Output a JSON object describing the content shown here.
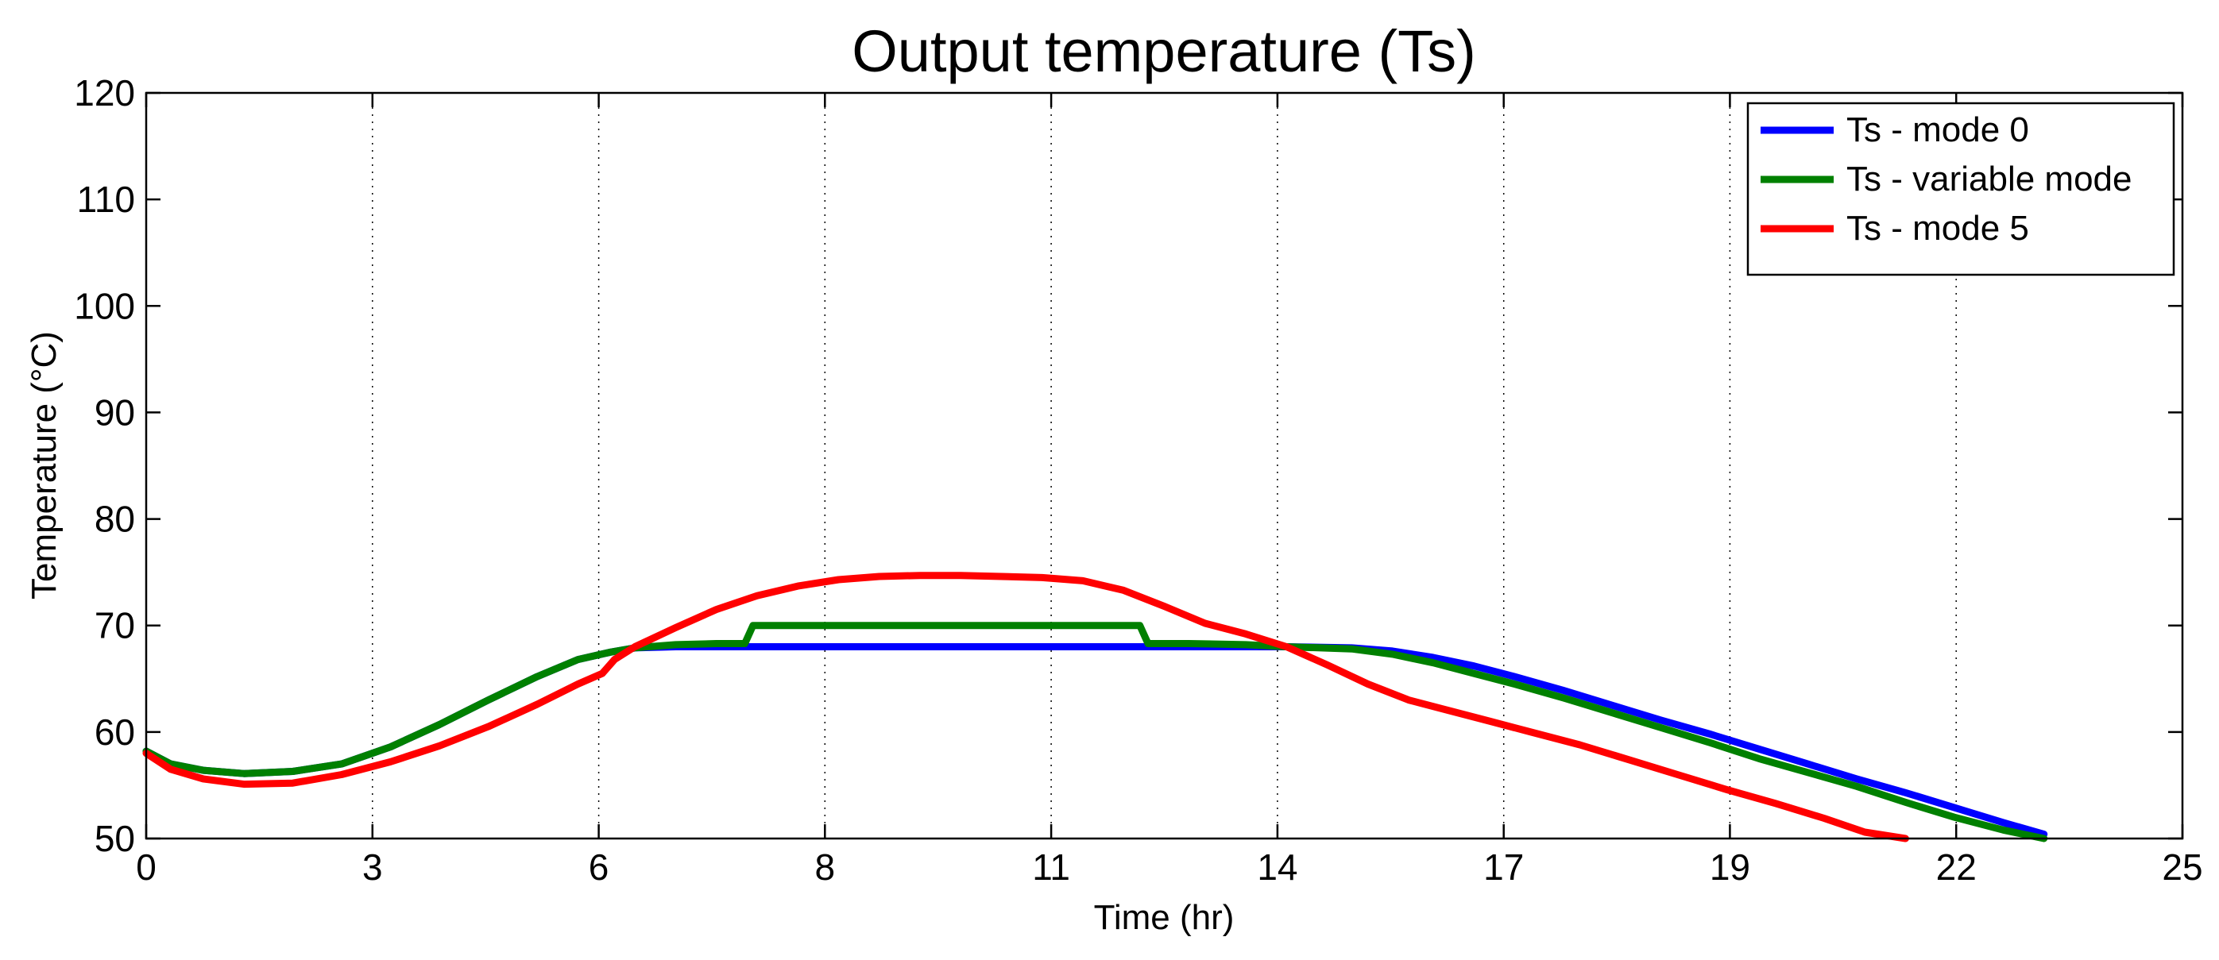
{
  "chart_data": {
    "type": "line",
    "title": "Output temperature (Ts)",
    "xlabel": "Time (hr)",
    "ylabel": "Temperature (°C)",
    "xlim": [
      0,
      25
    ],
    "ylim": [
      50,
      120
    ],
    "x_ticks": [
      {
        "value": 0,
        "label": "0"
      },
      {
        "value": 2.778,
        "label": "3"
      },
      {
        "value": 5.556,
        "label": "6"
      },
      {
        "value": 8.333,
        "label": "8"
      },
      {
        "value": 11.111,
        "label": "11"
      },
      {
        "value": 13.889,
        "label": "14"
      },
      {
        "value": 16.667,
        "label": "17"
      },
      {
        "value": 19.444,
        "label": "19"
      },
      {
        "value": 22.222,
        "label": "22"
      },
      {
        "value": 25,
        "label": "25"
      }
    ],
    "y_ticks": [
      50,
      60,
      70,
      80,
      90,
      100,
      110,
      120
    ],
    "grid": {
      "x": true,
      "y": false,
      "style": "dotted"
    },
    "legend": {
      "position": "top-right"
    },
    "series": [
      {
        "name": "Ts - mode 0",
        "color": "#0000ff",
        "x": [
          0,
          0.3,
          0.7,
          1.2,
          1.8,
          2.4,
          3.0,
          3.6,
          4.2,
          4.8,
          5.3,
          5.7,
          6.0,
          6.5,
          7.0,
          8.0,
          9.0,
          10.0,
          11.0,
          12.0,
          13.0,
          14.0,
          14.8,
          15.3,
          15.8,
          16.3,
          16.8,
          17.4,
          18.0,
          18.6,
          19.2,
          19.8,
          20.4,
          21.0,
          21.6,
          22.2,
          22.8,
          23.3
        ],
        "values": [
          58.2,
          57.0,
          56.4,
          56.1,
          56.3,
          57.0,
          58.6,
          60.7,
          63.0,
          65.2,
          66.8,
          67.5,
          67.9,
          68.0,
          68.0,
          68.0,
          68.0,
          68.0,
          68.0,
          68.0,
          68.0,
          68.0,
          67.9,
          67.6,
          67.0,
          66.2,
          65.2,
          63.9,
          62.5,
          61.1,
          59.8,
          58.4,
          57.0,
          55.6,
          54.3,
          52.9,
          51.5,
          50.4
        ]
      },
      {
        "name": "Ts - variable mode",
        "color": "#008000",
        "x": [
          0,
          0.3,
          0.7,
          1.2,
          1.8,
          2.4,
          3.0,
          3.6,
          4.2,
          4.8,
          5.3,
          5.7,
          6.0,
          6.5,
          7.0,
          7.35,
          7.45,
          7.6,
          8.0,
          9.0,
          10.0,
          11.0,
          11.8,
          12.2,
          12.3,
          12.4,
          12.8,
          13.5,
          14.0,
          14.8,
          15.3,
          15.8,
          16.3,
          16.8,
          17.4,
          18.0,
          18.6,
          19.2,
          19.8,
          20.4,
          21.0,
          21.6,
          22.2,
          22.8,
          23.3
        ],
        "values": [
          58.2,
          57.0,
          56.4,
          56.1,
          56.3,
          57.0,
          58.6,
          60.7,
          63.0,
          65.2,
          66.8,
          67.5,
          67.9,
          68.2,
          68.3,
          68.3,
          70.0,
          70.0,
          70.0,
          70.0,
          70.0,
          70.0,
          70.0,
          70.0,
          68.3,
          68.3,
          68.3,
          68.2,
          68.0,
          67.8,
          67.3,
          66.5,
          65.5,
          64.5,
          63.2,
          61.8,
          60.4,
          59.0,
          57.5,
          56.2,
          54.9,
          53.4,
          52.0,
          50.8,
          50.0
        ]
      },
      {
        "name": "Ts - mode 5",
        "color": "#ff0000",
        "x": [
          0,
          0.3,
          0.7,
          1.2,
          1.8,
          2.4,
          3.0,
          3.6,
          4.2,
          4.8,
          5.3,
          5.6,
          5.75,
          6.0,
          6.5,
          7.0,
          7.5,
          8.0,
          8.5,
          9.0,
          9.5,
          10.0,
          10.5,
          11.0,
          11.5,
          12.0,
          12.5,
          13.0,
          13.5,
          14.0,
          14.5,
          15.0,
          15.5,
          16.0,
          16.5,
          17.0,
          17.6,
          18.2,
          18.8,
          19.4,
          20.0,
          20.6,
          21.1,
          21.6
        ],
        "values": [
          58.0,
          56.5,
          55.6,
          55.1,
          55.2,
          56.0,
          57.2,
          58.7,
          60.5,
          62.6,
          64.5,
          65.5,
          66.8,
          68.0,
          69.8,
          71.5,
          72.8,
          73.7,
          74.3,
          74.6,
          74.7,
          74.7,
          74.6,
          74.5,
          74.2,
          73.3,
          71.8,
          70.2,
          69.2,
          68.0,
          66.3,
          64.5,
          63.0,
          62.0,
          61.0,
          60.0,
          58.8,
          57.4,
          56.0,
          54.6,
          53.3,
          51.9,
          50.6,
          50.0
        ]
      }
    ]
  }
}
